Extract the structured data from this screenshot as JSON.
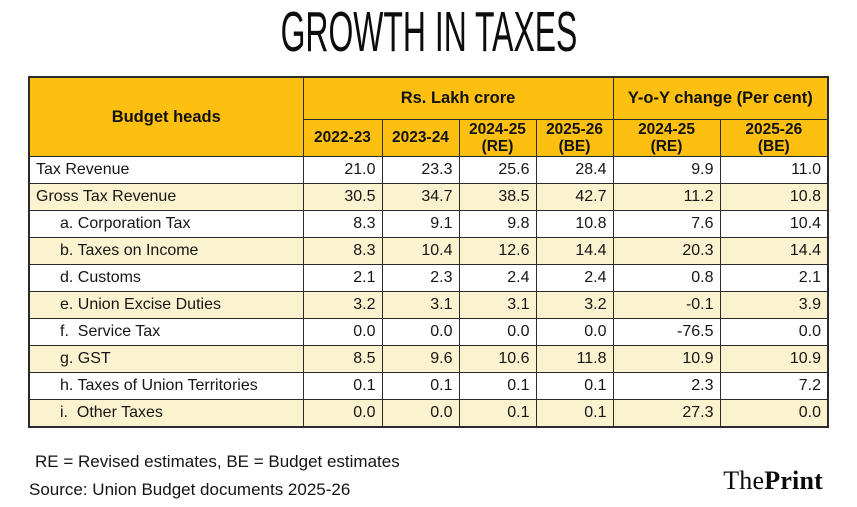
{
  "title": "GROWTH IN TAXES",
  "table": {
    "corner_label": "Budget heads",
    "groups": [
      {
        "label": "Rs. Lakh crore",
        "colspan": 4
      },
      {
        "label": "Y-o-Y change (Per cent)",
        "colspan": 2
      }
    ],
    "year_headers": [
      "2022-23",
      "2023-24",
      "2024-25\n(RE)",
      "2025-26\n(BE)",
      "2024-25\n(RE)",
      "2025-26\n(BE)"
    ],
    "rows": [
      {
        "label": "Tax Revenue",
        "sub": false,
        "values": [
          "21.0",
          "23.3",
          "25.6",
          "28.4",
          "9.9",
          "11.0"
        ]
      },
      {
        "label": "Gross Tax Revenue",
        "sub": false,
        "values": [
          "30.5",
          "34.7",
          "38.5",
          "42.7",
          "11.2",
          "10.8"
        ]
      },
      {
        "label": "a. Corporation Tax",
        "sub": true,
        "values": [
          "8.3",
          "9.1",
          "9.8",
          "10.8",
          "7.6",
          "10.4"
        ]
      },
      {
        "label": "b. Taxes on Income",
        "sub": true,
        "values": [
          "8.3",
          "10.4",
          "12.6",
          "14.4",
          "20.3",
          "14.4"
        ]
      },
      {
        "label": "d. Customs",
        "sub": true,
        "values": [
          "2.1",
          "2.3",
          "2.4",
          "2.4",
          "0.8",
          "2.1"
        ]
      },
      {
        "label": "e. Union Excise Duties",
        "sub": true,
        "values": [
          "3.2",
          "3.1",
          "3.1",
          "3.2",
          "-0.1",
          "3.9"
        ]
      },
      {
        "label": "f.  Service Tax",
        "sub": true,
        "values": [
          "0.0",
          "0.0",
          "0.0",
          "0.0",
          "-76.5",
          "0.0"
        ]
      },
      {
        "label": "g. GST",
        "sub": true,
        "values": [
          "8.5",
          "9.6",
          "10.6",
          "11.8",
          "10.9",
          "10.9"
        ]
      },
      {
        "label": "h. Taxes of Union Territories",
        "sub": true,
        "values": [
          "0.1",
          "0.1",
          "0.1",
          "0.1",
          "2.3",
          "7.2"
        ]
      },
      {
        "label": "i.  Other Taxes",
        "sub": true,
        "values": [
          "0.0",
          "0.0",
          "0.1",
          "0.1",
          "27.3",
          "0.0"
        ]
      }
    ]
  },
  "footnotes": {
    "line1": "RE = Revised estimates, BE = Budget estimates",
    "line2": "Source: Union Budget documents 2025-26"
  },
  "brand": {
    "prefix": "The",
    "suffix": "Print"
  },
  "colors": {
    "header_bg": "#FDC011",
    "row_alt_bg": "#FBF2CF",
    "border": "#2b2b2b",
    "background": "#ffffff"
  },
  "chart_data": {
    "type": "table",
    "title": "GROWTH IN TAXES",
    "units": {
      "levels": "Rs. Lakh crore",
      "change": "Y-o-Y change (Per cent)"
    },
    "columns": [
      "Budget heads",
      "2022-23 (Rs. Lakh crore)",
      "2023-24 (Rs. Lakh crore)",
      "2024-25 (RE) (Rs. Lakh crore)",
      "2025-26 (BE) (Rs. Lakh crore)",
      "2024-25 (RE) (Y-o-Y change %)",
      "2025-26 (BE) (Y-o-Y change %)"
    ],
    "rows": [
      [
        "Tax Revenue",
        21.0,
        23.3,
        25.6,
        28.4,
        9.9,
        11.0
      ],
      [
        "Gross Tax Revenue",
        30.5,
        34.7,
        38.5,
        42.7,
        11.2,
        10.8
      ],
      [
        "a. Corporation Tax",
        8.3,
        9.1,
        9.8,
        10.8,
        7.6,
        10.4
      ],
      [
        "b. Taxes on Income",
        8.3,
        10.4,
        12.6,
        14.4,
        20.3,
        14.4
      ],
      [
        "d. Customs",
        2.1,
        2.3,
        2.4,
        2.4,
        0.8,
        2.1
      ],
      [
        "e. Union Excise Duties",
        3.2,
        3.1,
        3.1,
        3.2,
        -0.1,
        3.9
      ],
      [
        "f. Service Tax",
        0.0,
        0.0,
        0.0,
        0.0,
        -76.5,
        0.0
      ],
      [
        "g. GST",
        8.5,
        9.6,
        10.6,
        11.8,
        10.9,
        10.9
      ],
      [
        "h. Taxes of Union Territories",
        0.1,
        0.1,
        0.1,
        0.1,
        2.3,
        7.2
      ],
      [
        "i. Other Taxes",
        0.0,
        0.0,
        0.1,
        0.1,
        27.3,
        0.0
      ]
    ]
  }
}
